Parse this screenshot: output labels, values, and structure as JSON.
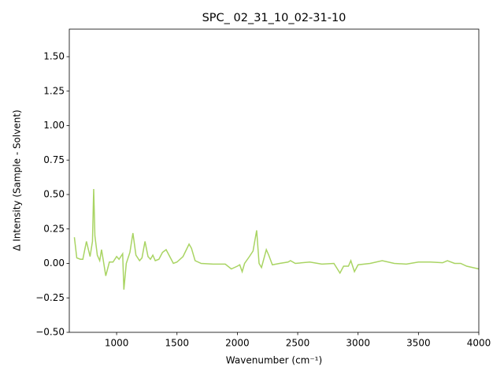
{
  "chart_data": {
    "type": "line",
    "title": "SPC_ 02_31_10_02-31-10",
    "xlabel": "Wavenumber (cm⁻¹)",
    "ylabel": "Δ Intensity (Sample - Solvent)",
    "color": "#a9d463",
    "x": [
      650,
      670,
      700,
      720,
      750,
      780,
      800,
      810,
      820,
      840,
      860,
      875,
      890,
      910,
      940,
      970,
      1000,
      1020,
      1050,
      1060,
      1080,
      1110,
      1135,
      1160,
      1190,
      1210,
      1235,
      1260,
      1280,
      1300,
      1320,
      1350,
      1380,
      1410,
      1440,
      1470,
      1500,
      1550,
      1600,
      1620,
      1650,
      1700,
      1800,
      1900,
      1950,
      2000,
      2020,
      2040,
      2060,
      2100,
      2130,
      2160,
      2180,
      2200,
      2240,
      2260,
      2290,
      2350,
      2420,
      2440,
      2480,
      2600,
      2700,
      2800,
      2850,
      2880,
      2920,
      2940,
      2970,
      3000,
      3100,
      3200,
      3300,
      3400,
      3500,
      3600,
      3700,
      3740,
      3800,
      3850,
      3900,
      4000
    ],
    "values": [
      0.19,
      0.04,
      0.03,
      0.03,
      0.16,
      0.05,
      0.16,
      0.54,
      0.2,
      0.06,
      0.02,
      0.1,
      0.02,
      -0.09,
      0.01,
      0.01,
      0.05,
      0.03,
      0.07,
      -0.19,
      0.0,
      0.08,
      0.22,
      0.06,
      0.02,
      0.04,
      0.16,
      0.05,
      0.03,
      0.06,
      0.02,
      0.03,
      0.08,
      0.1,
      0.05,
      0.0,
      0.01,
      0.05,
      0.14,
      0.11,
      0.02,
      0.0,
      -0.005,
      -0.005,
      -0.04,
      -0.02,
      -0.01,
      -0.06,
      0.0,
      0.05,
      0.09,
      0.24,
      0.0,
      -0.03,
      0.1,
      0.06,
      -0.01,
      0.0,
      0.01,
      0.02,
      0.0,
      0.01,
      -0.005,
      0.0,
      -0.07,
      -0.02,
      -0.02,
      0.02,
      -0.06,
      -0.01,
      0.0,
      0.02,
      0.0,
      -0.005,
      0.01,
      0.01,
      0.005,
      0.02,
      0.0,
      0.0,
      -0.02,
      -0.04
    ],
    "xlim": [
      608,
      4000
    ],
    "ylim": [
      -0.5,
      1.7
    ],
    "xticks": [
      1000,
      1500,
      2000,
      2500,
      3000,
      3500,
      4000
    ],
    "yticks": [
      {
        "value": -0.5,
        "label": "−0.50"
      },
      {
        "value": -0.25,
        "label": "−0.25"
      },
      {
        "value": 0,
        "label": "0.00"
      },
      {
        "value": 0.25,
        "label": "0.25"
      },
      {
        "value": 0.5,
        "label": "0.50"
      },
      {
        "value": 0.75,
        "label": "0.75"
      },
      {
        "value": 1,
        "label": "1.00"
      },
      {
        "value": 1.25,
        "label": "1.25"
      },
      {
        "value": 1.5,
        "label": "1.50"
      }
    ]
  }
}
